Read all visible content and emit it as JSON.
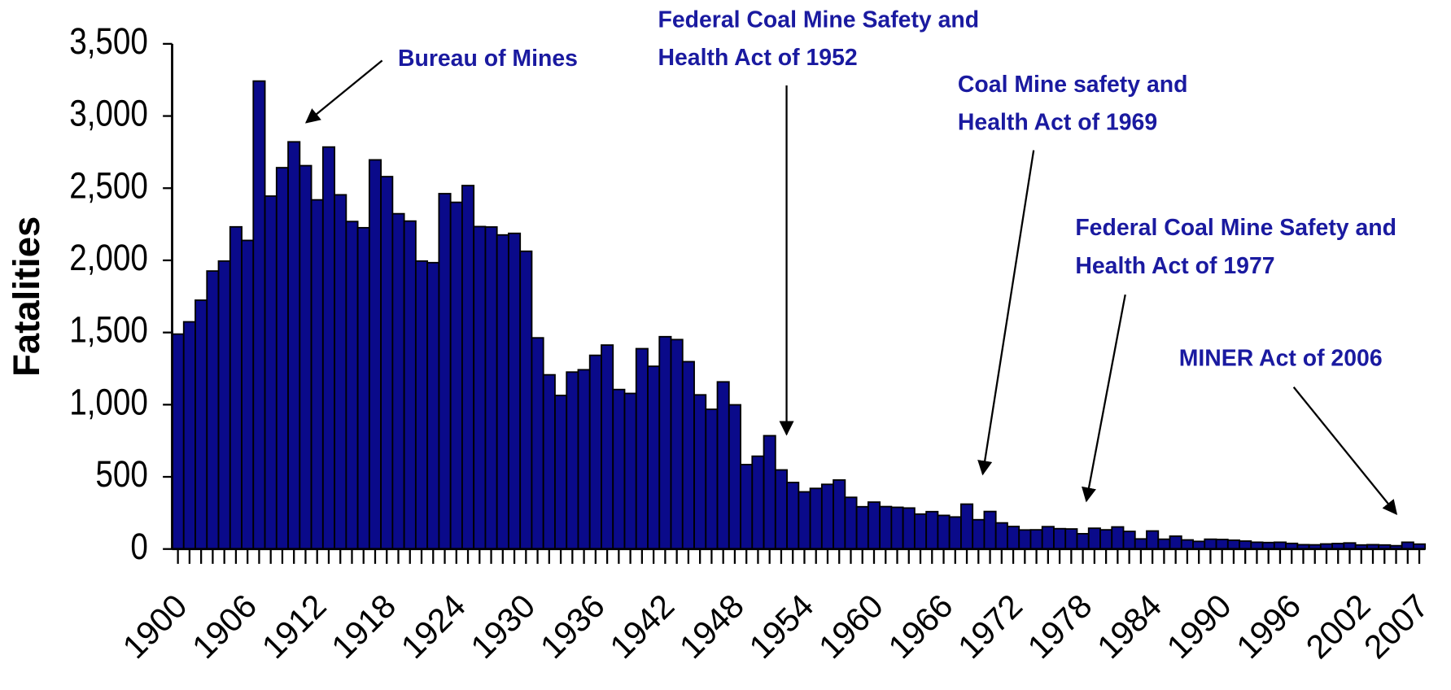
{
  "chart_data": {
    "type": "bar",
    "y_label": "Fatalities",
    "color": "#0a0a8a",
    "categories": [
      "1900",
      null,
      null,
      null,
      null,
      null,
      "1906",
      null,
      null,
      null,
      null,
      null,
      "1912",
      null,
      null,
      null,
      null,
      null,
      "1918",
      null,
      null,
      null,
      null,
      null,
      "1924",
      null,
      null,
      null,
      null,
      null,
      "1930",
      null,
      null,
      null,
      null,
      null,
      "1936",
      null,
      null,
      null,
      null,
      null,
      "1942",
      null,
      null,
      null,
      null,
      null,
      "1948",
      null,
      null,
      null,
      null,
      null,
      "1954",
      null,
      null,
      null,
      null,
      null,
      "1960",
      null,
      null,
      null,
      null,
      null,
      "1966",
      null,
      null,
      null,
      null,
      null,
      "1972",
      null,
      null,
      null,
      null,
      null,
      "1978",
      null,
      null,
      null,
      null,
      null,
      "1984",
      null,
      null,
      null,
      null,
      null,
      "1990",
      null,
      null,
      null,
      null,
      null,
      "1996",
      null,
      null,
      null,
      null,
      null,
      "2002",
      null,
      null,
      null,
      null,
      "2007"
    ],
    "values": [
      1489,
      1574,
      1724,
      1926,
      1995,
      2232,
      2138,
      3242,
      2445,
      2642,
      2821,
      2656,
      2419,
      2785,
      2454,
      2269,
      2226,
      2696,
      2580,
      2323,
      2272,
      1995,
      1984,
      2462,
      2402,
      2518,
      2234,
      2231,
      2176,
      2187,
      2063,
      1463,
      1207,
      1064,
      1226,
      1242,
      1342,
      1413,
      1105,
      1078,
      1388,
      1266,
      1471,
      1451,
      1298,
      1068,
      968,
      1158,
      999,
      585,
      643,
      785,
      548,
      461,
      396,
      420,
      448,
      478,
      358,
      293,
      325,
      294,
      289,
      284,
      242,
      259,
      233,
      222,
      311,
      203,
      260,
      181,
      156,
      132,
      133,
      155,
      141,
      139,
      106,
      144,
      133,
      153,
      122,
      70,
      125,
      68,
      89,
      63,
      53,
      68,
      66,
      61,
      55,
      47,
      45,
      47,
      39,
      30,
      29,
      35,
      38,
      42,
      28,
      30,
      28,
      23,
      47,
      34
    ],
    "ylim": [
      0,
      3500
    ],
    "yticks": [
      0,
      500,
      {
        "value": 1000,
        "label": "1,000"
      },
      {
        "value": 1500,
        "label": "1,500"
      },
      {
        "value": 2000,
        "label": "2,000"
      },
      {
        "value": 2500,
        "label": "2,500"
      },
      {
        "value": 3000,
        "label": "3,000"
      },
      {
        "value": 3500,
        "label": "3,500"
      }
    ],
    "annotations": [
      {
        "lines": [
          "Bureau of Mines"
        ]
      },
      {
        "lines": [
          "Federal Coal Mine Safety and",
          "Health Act of 1952"
        ]
      },
      {
        "lines": [
          "Coal Mine safety and",
          "Health Act of 1969"
        ]
      },
      {
        "lines": [
          "Federal Coal Mine Safety and",
          "Health Act of 1977"
        ]
      },
      {
        "lines": [
          "MINER Act of 2006"
        ]
      }
    ]
  }
}
